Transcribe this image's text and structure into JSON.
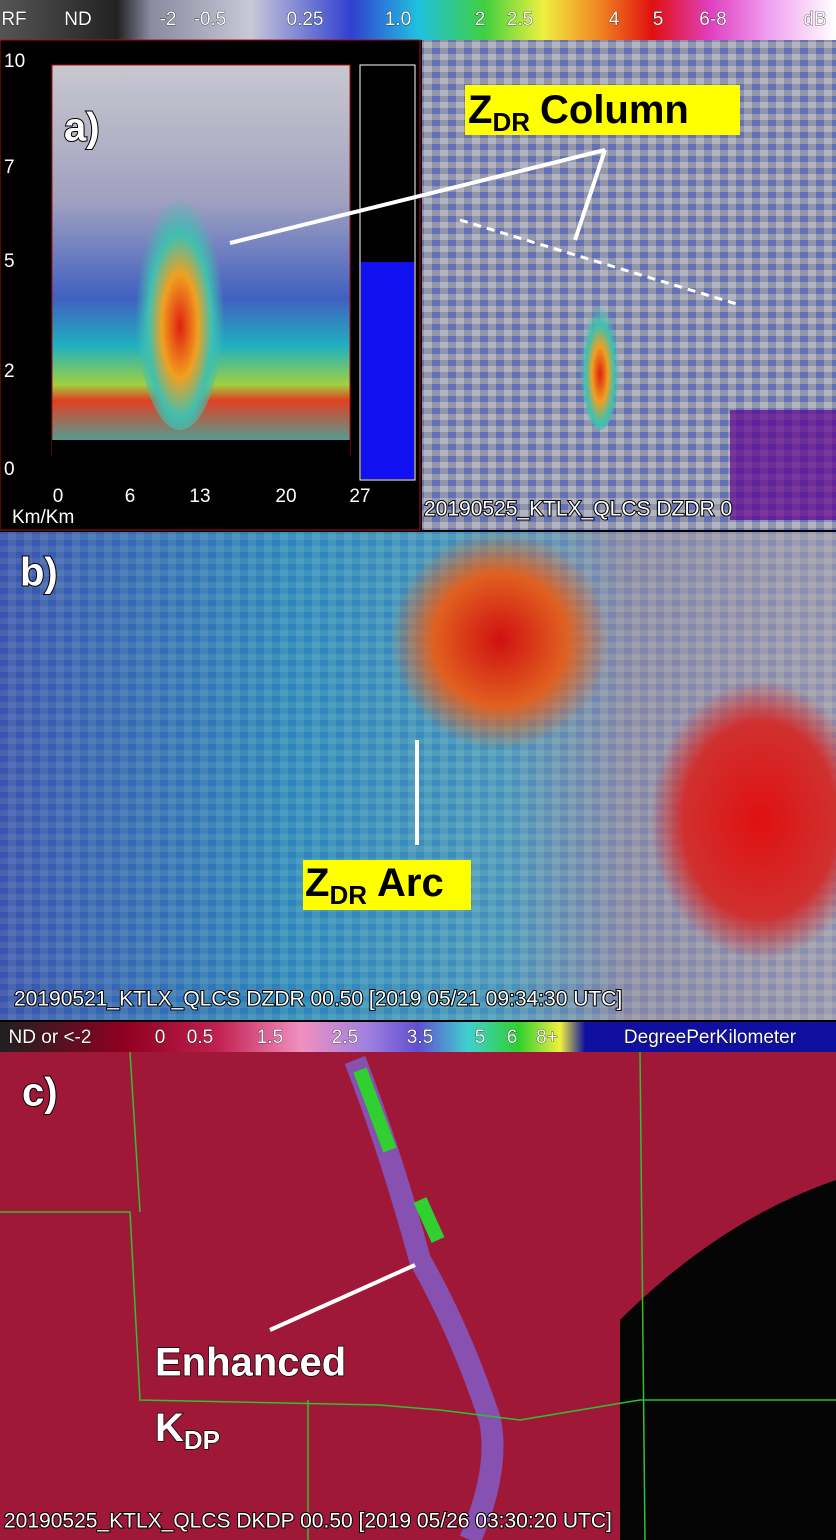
{
  "colorbar_top": {
    "labels": [
      "RF",
      "ND",
      "-2",
      "-0.5",
      "0.25",
      "1.0",
      "2",
      "2.5",
      "4",
      "5",
      "6-8",
      "dB"
    ]
  },
  "panel_a": {
    "label": "a)",
    "y_labels": [
      "10",
      "7",
      "5",
      "2",
      "0"
    ],
    "x_labels": [
      "0",
      "6",
      "13",
      "20",
      "27"
    ],
    "x_unit": "Km/Km",
    "annotation": {
      "main": "Z",
      "sub": "DR",
      "rest": "Column"
    },
    "caption": "20190525_KTLX_QLCS DZDR 0"
  },
  "panel_b": {
    "label": "b)",
    "annotation": {
      "main": "Z",
      "sub": "DR",
      "rest": "Arc"
    },
    "caption": "20190521_KTLX_QLCS DZDR 00.50 [2019 05/21 09:34:30 UTC]"
  },
  "colorbar_bottom": {
    "labels": [
      "ND or <-2",
      "0",
      "0.5",
      "1.5",
      "2.5",
      "3.5",
      "5",
      "6",
      "8+",
      "DegreePerKilometer"
    ]
  },
  "panel_c": {
    "label": "c)",
    "annotation": {
      "line1": "Enhanced",
      "main": "K",
      "sub": "DP"
    },
    "caption": "20190525_KTLX_QLCS DKDP 00.50 [2019 05/26 03:30:20 UTC]"
  }
}
